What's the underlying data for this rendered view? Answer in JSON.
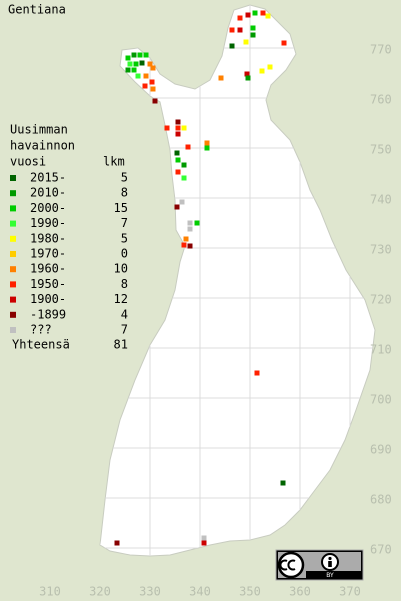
{
  "title": "Gentiana",
  "legend": {
    "heading": [
      "Uusimman",
      "havainnon",
      "vuosi"
    ],
    "count_heading": "lkm",
    "rows": [
      {
        "label": "2015-",
        "count": 5,
        "color": "#006400"
      },
      {
        "label": "2010-",
        "count": 8,
        "color": "#009a00"
      },
      {
        "label": "2000-",
        "count": 15,
        "color": "#00cc00"
      },
      {
        "label": "1990-",
        "count": 7,
        "color": "#33ff33"
      },
      {
        "label": "1980-",
        "count": 5,
        "color": "#ffff00"
      },
      {
        "label": "1970-",
        "count": 0,
        "color": "#ffcc00"
      },
      {
        "label": "1960-",
        "count": 10,
        "color": "#ff8000"
      },
      {
        "label": "1950-",
        "count": 8,
        "color": "#ff2000"
      },
      {
        "label": "1900-",
        "count": 12,
        "color": "#cc0000"
      },
      {
        "label": "-1899",
        "count": 4,
        "color": "#880000"
      },
      {
        "label": "???",
        "count": 7,
        "color": "#c0c0c0"
      }
    ],
    "total_label": "Yhteensä",
    "total": 81
  },
  "xticks": [
    310,
    320,
    330,
    340,
    350,
    360,
    370
  ],
  "yticks": [
    770,
    760,
    750,
    740,
    730,
    720,
    710,
    700,
    690,
    680,
    670
  ],
  "points": [
    [
      348,
      776,
      7
    ],
    [
      349.6,
      776.6,
      8
    ],
    [
      351,
      777,
      2
    ],
    [
      352.6,
      777,
      7
    ],
    [
      353.6,
      776.4,
      4
    ],
    [
      350.6,
      774,
      2
    ],
    [
      350.6,
      772.6,
      1
    ],
    [
      346.4,
      773.6,
      7
    ],
    [
      348,
      773.6,
      8
    ],
    [
      349.2,
      771.2,
      4
    ],
    [
      346.4,
      770.4,
      0
    ],
    [
      356.8,
      771,
      7
    ],
    [
      352.4,
      765.4,
      4
    ],
    [
      354,
      766.2,
      4
    ],
    [
      349.4,
      764.8,
      8
    ],
    [
      349.6,
      764,
      1
    ],
    [
      344.2,
      764,
      6
    ],
    [
      325.6,
      768,
      2
    ],
    [
      326.8,
      768.6,
      1
    ],
    [
      328,
      768.6,
      2
    ],
    [
      329.2,
      768.6,
      2
    ],
    [
      326,
      766.8,
      3
    ],
    [
      327.2,
      766.8,
      2
    ],
    [
      325.6,
      765.6,
      1
    ],
    [
      326.8,
      765.6,
      2
    ],
    [
      328.4,
      767,
      0
    ],
    [
      327.6,
      764.4,
      3
    ],
    [
      330,
      766.8,
      6
    ],
    [
      330.6,
      766,
      6
    ],
    [
      329.2,
      764.4,
      6
    ],
    [
      330.4,
      763.2,
      7
    ],
    [
      329,
      762.4,
      7
    ],
    [
      330.6,
      761.8,
      6
    ],
    [
      331,
      759.4,
      9
    ],
    [
      335.6,
      755.2,
      9
    ],
    [
      335.6,
      754,
      7
    ],
    [
      335.6,
      752.8,
      8
    ],
    [
      336.8,
      754,
      4
    ],
    [
      333.4,
      754,
      7
    ],
    [
      337.6,
      750.2,
      7
    ],
    [
      341.4,
      751,
      6
    ],
    [
      341.4,
      750,
      2
    ],
    [
      335.4,
      749,
      0
    ],
    [
      335.6,
      747.6,
      2
    ],
    [
      336.8,
      746.6,
      1
    ],
    [
      335.6,
      745.2,
      7
    ],
    [
      336.8,
      744,
      3
    ],
    [
      336.4,
      739.2,
      10
    ],
    [
      335.4,
      738.2,
      9
    ],
    [
      339.4,
      735,
      2
    ],
    [
      338,
      735,
      10
    ],
    [
      338,
      733.8,
      10
    ],
    [
      337.2,
      731.8,
      6
    ],
    [
      336.8,
      730.6,
      7
    ],
    [
      338,
      730.4,
      9
    ],
    [
      351.4,
      705,
      7
    ],
    [
      356.6,
      683,
      0
    ],
    [
      323.4,
      671,
      9
    ],
    [
      340.8,
      672,
      10
    ],
    [
      340.8,
      671,
      8
    ]
  ],
  "license_label": "BY"
}
